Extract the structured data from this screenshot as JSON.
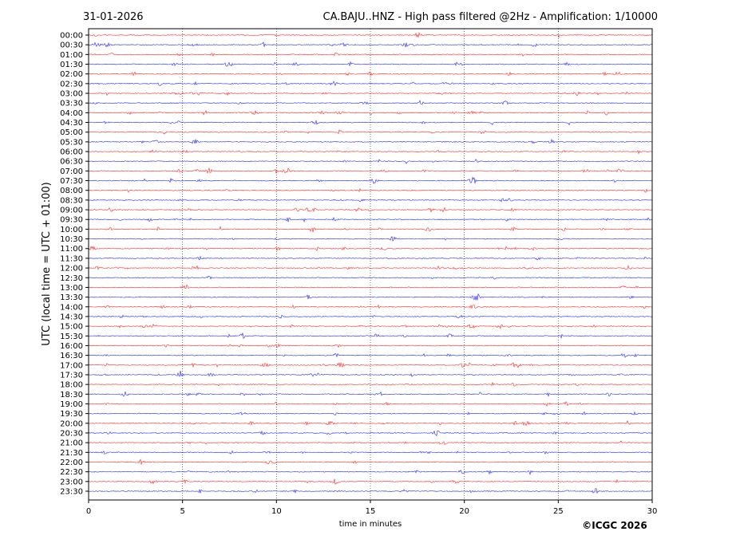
{
  "chart_data": {
    "type": "line",
    "date": "31-01-2026",
    "title": "CA.BAJU..HNZ - High pass filtered @2Hz - Amplification: 1/10000",
    "xlabel": "time in minutes",
    "ylabel": "UTC (local time = UTC + 01:00)",
    "xlim": [
      0,
      30
    ],
    "xticks": [
      "0",
      "5",
      "10",
      "15",
      "20",
      "25",
      "30"
    ],
    "grid": "vertical dotted at x ticks",
    "yticks": [
      "00:00",
      "00:30",
      "01:00",
      "01:30",
      "02:00",
      "02:30",
      "03:00",
      "03:30",
      "04:00",
      "04:30",
      "05:00",
      "05:30",
      "06:00",
      "06:30",
      "07:00",
      "07:30",
      "08:00",
      "08:30",
      "09:00",
      "09:30",
      "10:00",
      "10:30",
      "11:00",
      "11:30",
      "12:00",
      "12:30",
      "13:00",
      "13:30",
      "14:00",
      "14:30",
      "15:00",
      "15:30",
      "16:00",
      "16:30",
      "17:00",
      "17:30",
      "18:00",
      "18:30",
      "19:00",
      "19:30",
      "20:00",
      "20:30",
      "21:00",
      "21:30",
      "22:00",
      "22:30",
      "23:00",
      "23:30"
    ],
    "trace_colors": [
      "#ff0000",
      "#0000ff"
    ],
    "copyright": "©ICGC 2026"
  }
}
